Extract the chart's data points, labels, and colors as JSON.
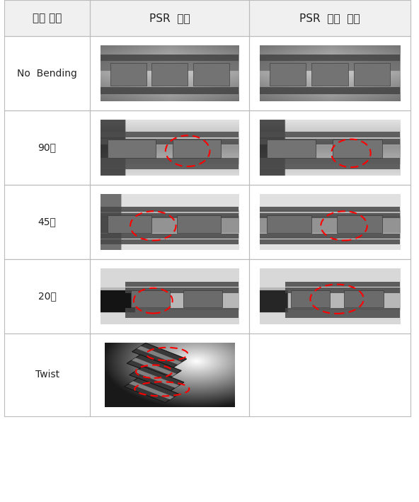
{
  "title": "",
  "col_headers": [
    "굴곡 형태",
    "PSR  코팅",
    "PSR  코팅  안함"
  ],
  "row_labels": [
    "No  Bending",
    "90도",
    "45도",
    "20도",
    "Twist"
  ],
  "bg_color": "#ffffff",
  "border_color": "#bbbbbb",
  "header_bg": "#f0f0f0",
  "text_color": "#222222",
  "header_font_size": 11,
  "cell_label_font_size": 10,
  "figsize": [
    5.92,
    7.09
  ],
  "dpi": 100
}
